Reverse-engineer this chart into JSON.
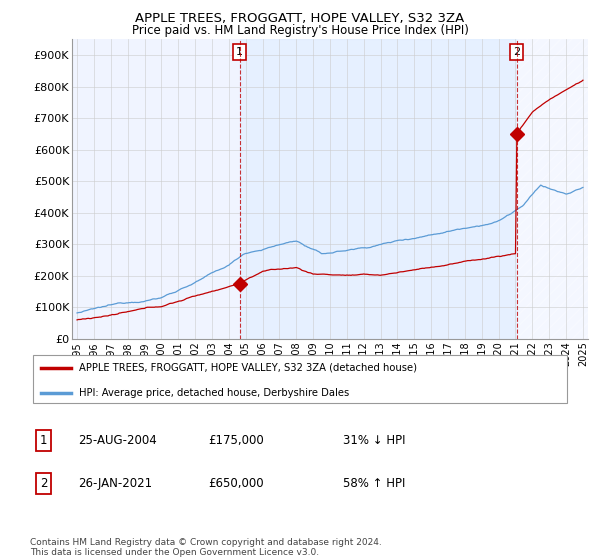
{
  "title": "APPLE TREES, FROGGATT, HOPE VALLEY, S32 3ZA",
  "subtitle": "Price paid vs. HM Land Registry's House Price Index (HPI)",
  "ylabel_ticks": [
    "£0",
    "£100K",
    "£200K",
    "£300K",
    "£400K",
    "£500K",
    "£600K",
    "£700K",
    "£800K",
    "£900K"
  ],
  "ytick_vals": [
    0,
    100000,
    200000,
    300000,
    400000,
    500000,
    600000,
    700000,
    800000,
    900000
  ],
  "ylim": [
    0,
    950000
  ],
  "year_start": 1995,
  "year_end": 2025,
  "hpi_color": "#5b9bd5",
  "price_color": "#c00000",
  "vline_color": "#c00000",
  "shade_color": "#ddeeff",
  "sale1_year": 2004.646,
  "sale1_price": 175000,
  "sale2_year": 2021.069,
  "sale2_price": 650000,
  "legend_label1": "APPLE TREES, FROGGATT, HOPE VALLEY, S32 3ZA (detached house)",
  "legend_label2": "HPI: Average price, detached house, Derbyshire Dales",
  "table_row1": [
    "1",
    "25-AUG-2004",
    "£175,000",
    "31% ↓ HPI"
  ],
  "table_row2": [
    "2",
    "26-JAN-2021",
    "£650,000",
    "58% ↑ HPI"
  ],
  "footnote": "Contains HM Land Registry data © Crown copyright and database right 2024.\nThis data is licensed under the Open Government Licence v3.0.",
  "background_color": "#ffffff",
  "grid_color": "#cccccc",
  "chart_bg": "#f0f4ff"
}
